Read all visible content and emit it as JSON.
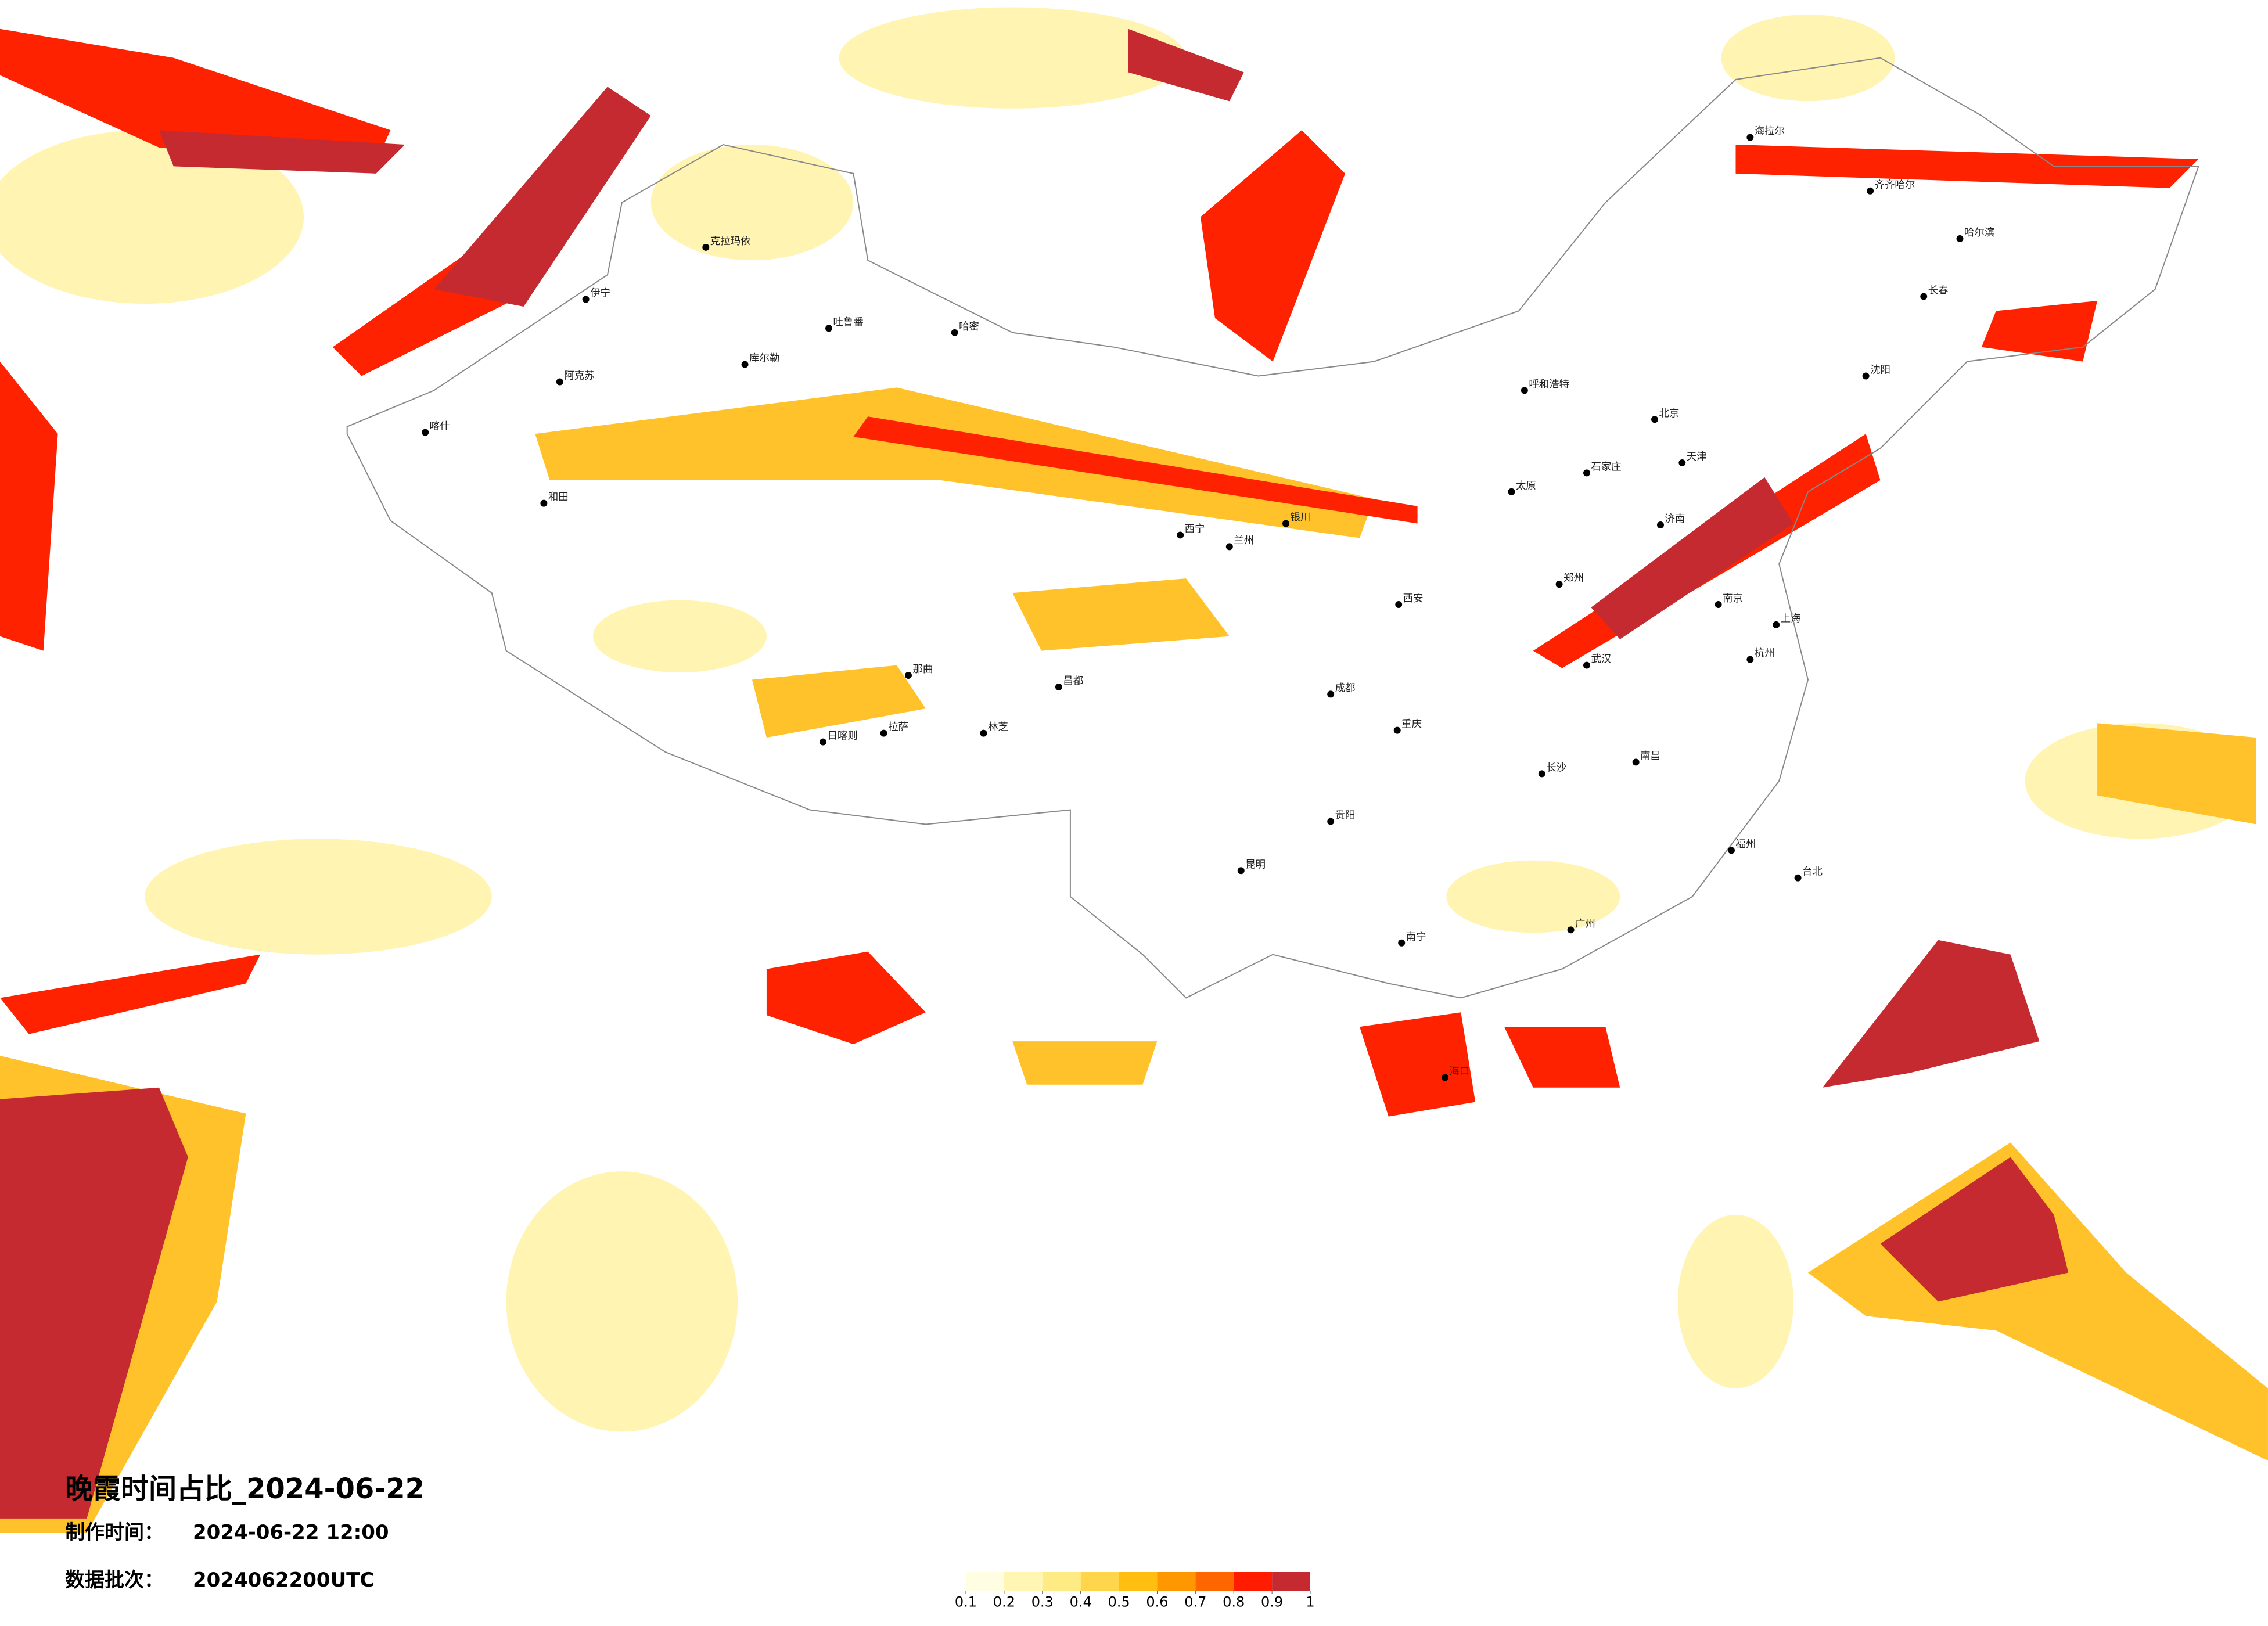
{
  "title": "晚霞时间占比_2024-06-22",
  "production_time": {
    "label": "制作时间：",
    "value": "2024-06-22 12:00"
  },
  "data_batch": {
    "label": "数据批次：",
    "value": "2024062200UTC"
  },
  "colorbar": {
    "ticks": [
      0.1,
      0.2,
      0.3,
      0.4,
      0.5,
      0.6,
      0.7,
      0.8,
      0.9,
      1
    ],
    "colors": [
      "#fffde2",
      "#fff6b4",
      "#ffeb84",
      "#ffd54c",
      "#ffbe10",
      "#ff9800",
      "#ff6600",
      "#ff1c00",
      "#c42a30"
    ]
  },
  "cities": [
    "克拉玛依",
    "伊宁",
    "阿克苏",
    "喀什",
    "和田",
    "吐鲁番",
    "哈密",
    "库尔勒",
    "拉萨",
    "日喀则",
    "林芝",
    "昌都",
    "那曲",
    "西宁",
    "兰州",
    "银川",
    "呼和浩特",
    "北京",
    "天津",
    "石家庄",
    "太原",
    "济南",
    "郑州",
    "西安",
    "成都",
    "重庆",
    "武汉",
    "南京",
    "上海",
    "杭州",
    "长沙",
    "南昌",
    "福州",
    "广州",
    "南宁",
    "昆明",
    "贵阳",
    "哈尔滨",
    "长春",
    "沈阳",
    "海拉尔",
    "齐齐哈尔",
    "台北",
    "海口"
  ]
}
